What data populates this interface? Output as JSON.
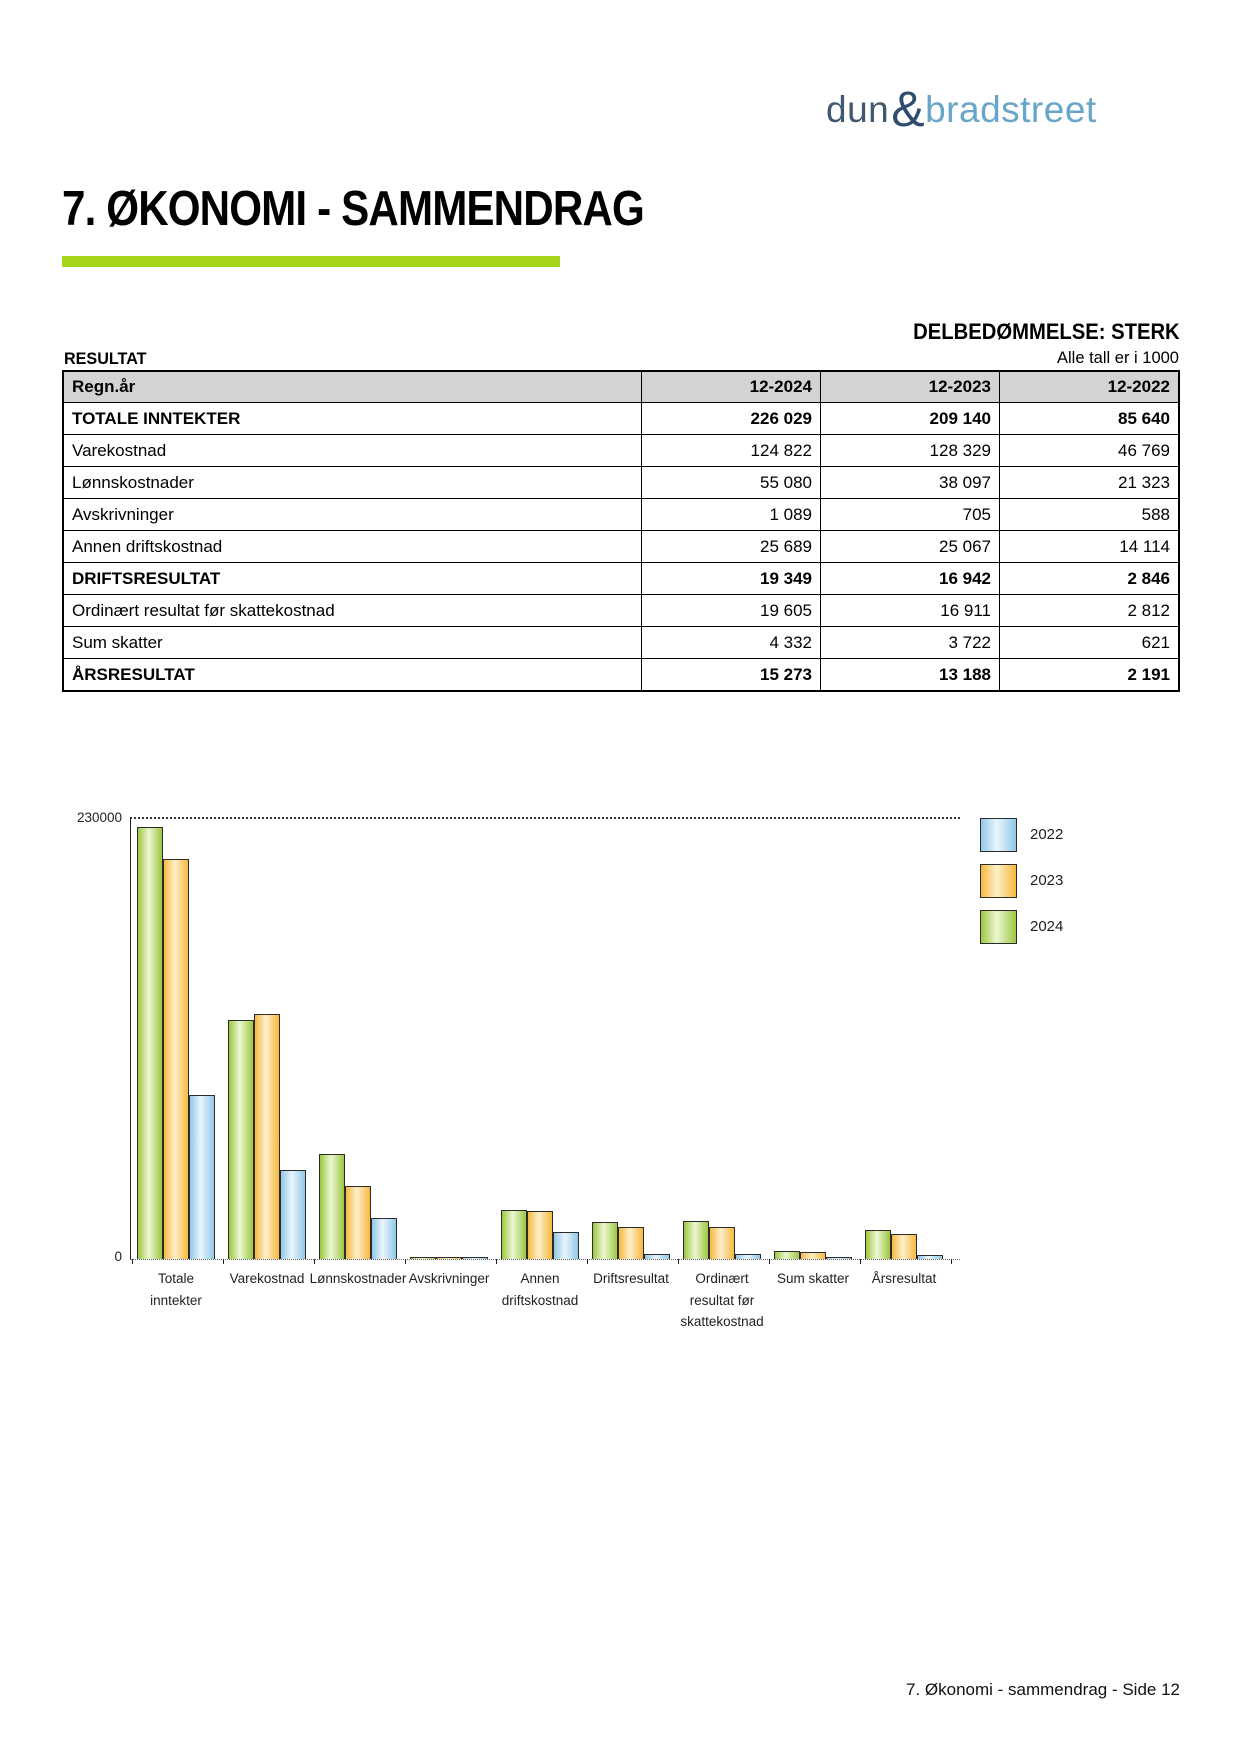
{
  "logo": {
    "dun": "dun",
    "amp": "&",
    "bradstreet": "bradstreet"
  },
  "page_title": "7. ØKONOMI - SAMMENDRAG",
  "assessment": "DELBEDØMMELSE: STERK",
  "section_label": "RESULTAT",
  "units_note": "Alle tall er i 1000",
  "table": {
    "header": [
      "Regn.år",
      "12-2024",
      "12-2023",
      "12-2022"
    ],
    "rows": [
      {
        "label": "TOTALE INNTEKTER",
        "values": [
          "226 029",
          "209 140",
          "85 640"
        ],
        "bold": true
      },
      {
        "label": "Varekostnad",
        "values": [
          "124 822",
          "128 329",
          "46 769"
        ],
        "bold": false
      },
      {
        "label": "Lønnskostnader",
        "values": [
          "55 080",
          "38 097",
          "21 323"
        ],
        "bold": false
      },
      {
        "label": "Avskrivninger",
        "values": [
          "1 089",
          "705",
          "588"
        ],
        "bold": false
      },
      {
        "label": "Annen driftskostnad",
        "values": [
          "25 689",
          "25 067",
          "14 114"
        ],
        "bold": false
      },
      {
        "label": "DRIFTSRESULTAT",
        "values": [
          "19 349",
          "16 942",
          "2 846"
        ],
        "bold": true
      },
      {
        "label": "Ordinært resultat før skattekostnad",
        "values": [
          "19 605",
          "16 911",
          "2 812"
        ],
        "bold": false
      },
      {
        "label": "Sum skatter",
        "values": [
          "4 332",
          "3 722",
          "621"
        ],
        "bold": false
      },
      {
        "label": "ÅRSRESULTAT",
        "values": [
          "15 273",
          "13 188",
          "2 191"
        ],
        "bold": true
      }
    ]
  },
  "chart_data": {
    "type": "bar",
    "title": "",
    "categories": [
      "Totale inntekter",
      "Varekostnad",
      "Lønnskostnader",
      "Avskrivninger",
      "Annen driftskostnad",
      "Driftsresultat",
      "Ordinært resultat før skattekostnad",
      "Sum skatter",
      "Årsresultat"
    ],
    "category_label_lines": [
      [
        "Totale",
        "inntekter"
      ],
      [
        "Varekostnad"
      ],
      [
        "Lønnskostnader"
      ],
      [
        "Avskrivninger"
      ],
      [
        "Annen",
        "driftskostnad"
      ],
      [
        "Driftsresultat"
      ],
      [
        "Ordinært",
        "resultat før",
        "skattekostnad"
      ],
      [
        "Sum skatter"
      ],
      [
        "Årsresultat"
      ]
    ],
    "series": [
      {
        "name": "2022",
        "values": [
          85640,
          46769,
          21323,
          588,
          14114,
          2846,
          2812,
          621,
          2191
        ],
        "edge": "#93C7E9",
        "mid": "#E9F5FD"
      },
      {
        "name": "2023",
        "values": [
          209140,
          128329,
          38097,
          705,
          25067,
          16942,
          16911,
          3722,
          13188
        ],
        "edge": "#F6B93F",
        "mid": "#FDEFCB"
      },
      {
        "name": "2024",
        "values": [
          226029,
          124822,
          55080,
          1089,
          25689,
          19349,
          19605,
          4332,
          15273
        ],
        "edge": "#9CC741",
        "mid": "#EDF7D3"
      }
    ],
    "bar_order": [
      "2024",
      "2023",
      "2022"
    ],
    "ylim": [
      0,
      230000
    ],
    "y_top_label": "230000",
    "y_bottom_label": "0",
    "legend_position": "top-right",
    "grid": "top-dotted-line"
  },
  "footer": {
    "text": "7. Økonomi - sammendrag - Side 12"
  },
  "colors": {
    "accent_green": "#A4D41C",
    "logo_dark": "#41586E",
    "logo_amp": "#2F4E6E",
    "logo_light": "#69A5C8",
    "table_header_bg": "#D3D3D3"
  }
}
